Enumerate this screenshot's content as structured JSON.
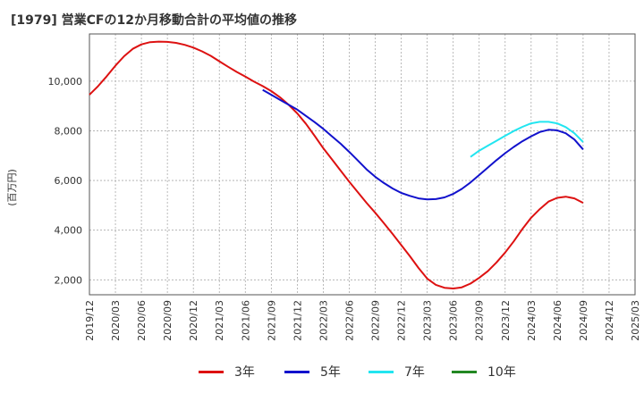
{
  "chart_data": {
    "type": "line",
    "title": "[1979]  営業CFの12か月移動合計の平均値の推移",
    "ylabel": "(百万円)",
    "xlabel": "",
    "x_ticks": [
      "2019/12",
      "2020/03",
      "2020/06",
      "2020/09",
      "2020/12",
      "2021/03",
      "2021/06",
      "2021/09",
      "2021/12",
      "2022/03",
      "2022/06",
      "2022/09",
      "2022/12",
      "2023/03",
      "2023/06",
      "2023/09",
      "2023/12",
      "2024/03",
      "2024/06",
      "2024/09",
      "2024/12",
      "2025/03"
    ],
    "xlim": [
      "2019/12",
      "2025/03"
    ],
    "y_ticks": [
      2000,
      4000,
      6000,
      8000,
      10000
    ],
    "y_tick_labels": [
      "2,000",
      "4,000",
      "6,000",
      "8,000",
      "10,000"
    ],
    "ylim": [
      1400,
      11900
    ],
    "grid": true,
    "legend_position": "bottom",
    "series": [
      {
        "name": "3年",
        "color": "#dd1111",
        "x": [
          "2019/12",
          "2020/01",
          "2020/02",
          "2020/03",
          "2020/04",
          "2020/05",
          "2020/06",
          "2020/07",
          "2020/08",
          "2020/09",
          "2020/10",
          "2020/11",
          "2020/12",
          "2021/01",
          "2021/02",
          "2021/03",
          "2021/04",
          "2021/05",
          "2021/06",
          "2021/07",
          "2021/08",
          "2021/09",
          "2021/10",
          "2021/11",
          "2021/12",
          "2022/01",
          "2022/02",
          "2022/03",
          "2022/04",
          "2022/05",
          "2022/06",
          "2022/07",
          "2022/08",
          "2022/09",
          "2022/10",
          "2022/11",
          "2022/12",
          "2023/01",
          "2023/02",
          "2023/03",
          "2023/04",
          "2023/05",
          "2023/06",
          "2023/07",
          "2023/08",
          "2023/09",
          "2023/10",
          "2023/11",
          "2023/12",
          "2024/01",
          "2024/02",
          "2024/03",
          "2024/04",
          "2024/05",
          "2024/06",
          "2024/07",
          "2024/08",
          "2024/09"
        ],
        "y": [
          9450,
          9800,
          10200,
          10620,
          11000,
          11300,
          11480,
          11570,
          11590,
          11580,
          11540,
          11460,
          11350,
          11200,
          11020,
          10800,
          10580,
          10370,
          10180,
          9980,
          9800,
          9600,
          9350,
          9050,
          8700,
          8280,
          7800,
          7300,
          6850,
          6400,
          5950,
          5520,
          5100,
          4700,
          4280,
          3850,
          3400,
          2950,
          2480,
          2050,
          1800,
          1680,
          1650,
          1700,
          1850,
          2080,
          2350,
          2700,
          3100,
          3550,
          4050,
          4500,
          4850,
          5150,
          5300,
          5350,
          5280,
          5100
        ]
      },
      {
        "name": "5年",
        "color": "#1111cc",
        "x": [
          "2021/08",
          "2021/09",
          "2021/10",
          "2021/11",
          "2021/12",
          "2022/01",
          "2022/02",
          "2022/03",
          "2022/04",
          "2022/05",
          "2022/06",
          "2022/07",
          "2022/08",
          "2022/09",
          "2022/10",
          "2022/11",
          "2022/12",
          "2023/01",
          "2023/02",
          "2023/03",
          "2023/04",
          "2023/05",
          "2023/06",
          "2023/07",
          "2023/08",
          "2023/09",
          "2023/10",
          "2023/11",
          "2023/12",
          "2024/01",
          "2024/02",
          "2024/03",
          "2024/04",
          "2024/05",
          "2024/06",
          "2024/07",
          "2024/08",
          "2024/09"
        ],
        "y": [
          9650,
          9450,
          9250,
          9050,
          8850,
          8600,
          8350,
          8080,
          7780,
          7480,
          7150,
          6800,
          6450,
          6150,
          5900,
          5680,
          5500,
          5380,
          5280,
          5240,
          5250,
          5320,
          5460,
          5660,
          5920,
          6220,
          6520,
          6820,
          7100,
          7350,
          7580,
          7780,
          7950,
          8040,
          8020,
          7900,
          7650,
          7250
        ]
      },
      {
        "name": "7年",
        "color": "#22e5f0",
        "x": [
          "2023/08",
          "2023/09",
          "2023/10",
          "2023/11",
          "2023/12",
          "2024/01",
          "2024/02",
          "2024/03",
          "2024/04",
          "2024/05",
          "2024/06",
          "2024/07",
          "2024/08",
          "2024/09"
        ],
        "y": [
          6950,
          7200,
          7400,
          7600,
          7800,
          7990,
          8160,
          8300,
          8360,
          8360,
          8300,
          8150,
          7900,
          7550
        ]
      },
      {
        "name": "10年",
        "color": "#228822",
        "x": [],
        "y": []
      }
    ]
  },
  "colors": {
    "grid": "#aaaaaa",
    "axis": "#555555",
    "text": "#333333"
  }
}
